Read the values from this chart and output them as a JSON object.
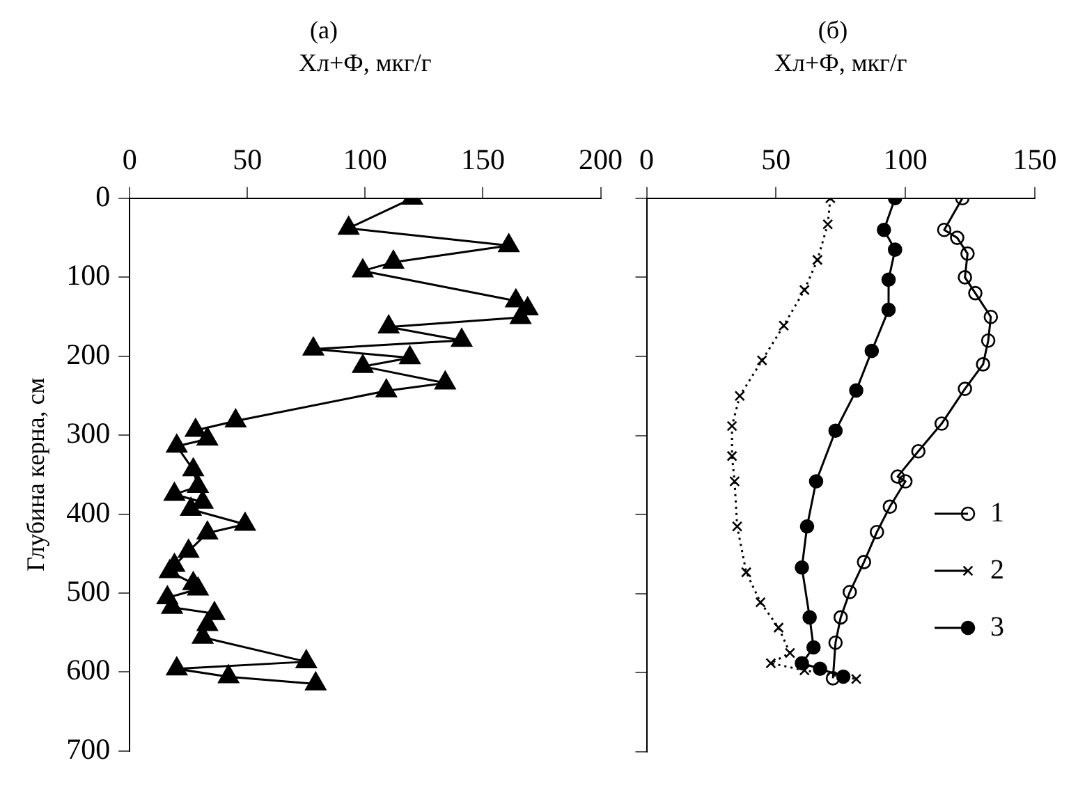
{
  "chart_data": [
    {
      "type": "line",
      "title": "(а)",
      "xlabel": "Хл+Ф, мкг/г",
      "ylabel": "Глубина керна, см",
      "xlim": [
        0,
        200
      ],
      "xticks": [
        0,
        50,
        100,
        150,
        200
      ],
      "ylim": [
        700,
        0
      ],
      "yticks": [
        0,
        100,
        200,
        300,
        400,
        500,
        600,
        700
      ],
      "grid": false,
      "legend": false,
      "marker": "triangle",
      "series": [
        {
          "color": "#000000",
          "x": [
            120,
            93,
            161,
            112,
            99,
            164,
            169,
            166,
            110,
            141,
            78,
            119,
            99,
            134,
            109,
            45,
            28,
            33,
            20,
            27,
            29,
            19,
            31,
            26,
            49,
            33,
            25,
            19,
            17,
            27,
            29,
            16,
            18,
            36,
            33,
            31,
            75,
            20,
            42,
            79
          ],
          "values": [
            0,
            38,
            60,
            81,
            92,
            130,
            140,
            151,
            163,
            180,
            191,
            202,
            213,
            234,
            244,
            282,
            294,
            305,
            314,
            344,
            365,
            375,
            385,
            394,
            413,
            424,
            447,
            465,
            473,
            488,
            495,
            506,
            518,
            526,
            540,
            556,
            587,
            596,
            606,
            615
          ]
        }
      ]
    },
    {
      "type": "line",
      "title": "(б)",
      "xlabel": "Хл+Ф, мкг/г",
      "xlim": [
        0,
        150
      ],
      "xticks": [
        0,
        50,
        100,
        150
      ],
      "ylim": [
        700,
        0
      ],
      "yticks": [
        0,
        100,
        200,
        300,
        400,
        500,
        600,
        700
      ],
      "grid": false,
      "legend": "right",
      "tick_labels": "x",
      "series": [
        {
          "name": "1",
          "color": "#000000",
          "marker": "circle",
          "x": [
            122,
            115,
            120,
            124,
            123,
            127,
            133,
            132,
            130,
            123,
            114,
            105,
            97,
            100,
            94,
            89,
            84,
            78.5,
            75,
            73,
            72
          ],
          "values": [
            0,
            40,
            50,
            70,
            100,
            120,
            150,
            180,
            210,
            241,
            285,
            320,
            352,
            358,
            390,
            422,
            460,
            498,
            530,
            562,
            607
          ]
        },
        {
          "name": "2",
          "color": "#000000",
          "marker": "cross",
          "line_style": "dotted",
          "x": [
            71,
            70,
            66,
            61,
            53,
            44.6,
            36,
            33,
            33,
            34,
            35,
            38.5,
            44,
            51,
            55.4,
            48,
            61,
            81
          ],
          "values": [
            0,
            33,
            78,
            116,
            161,
            205,
            250,
            288,
            326,
            358,
            415,
            473,
            511,
            543,
            575,
            588,
            597,
            608
          ]
        },
        {
          "name": "3",
          "color": "#000000",
          "marker": "circle",
          "x": [
            96,
            91.7,
            96,
            93.5,
            93.5,
            87,
            81,
            73,
            65.5,
            62,
            60,
            63,
            64.5,
            60,
            67,
            76
          ],
          "values": [
            0,
            40,
            65,
            103,
            141,
            193,
            243,
            294,
            358,
            415,
            467,
            530,
            568,
            588,
            595,
            605
          ]
        }
      ]
    }
  ]
}
